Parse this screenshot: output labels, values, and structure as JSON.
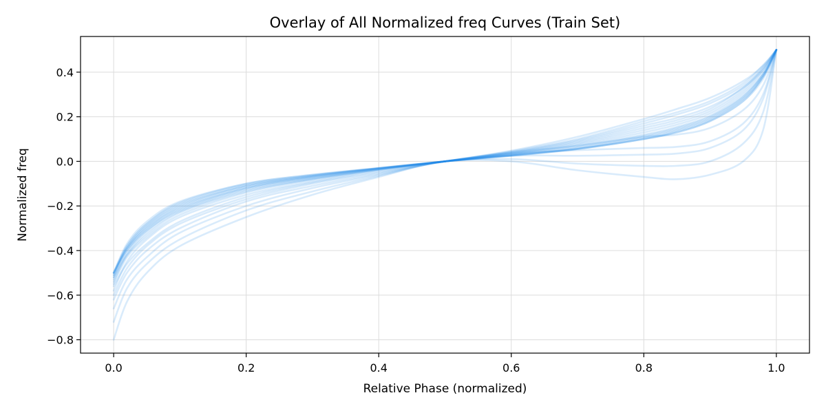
{
  "chart_data": {
    "type": "line",
    "title": "Overlay of All Normalized freq Curves (Train Set)",
    "xlabel": "Relative Phase (normalized)",
    "ylabel": "Normalized freq",
    "xlim": [
      -0.05,
      1.05
    ],
    "ylim": [
      -0.86,
      0.56
    ],
    "xticks": [
      0.0,
      0.2,
      0.4,
      0.6,
      0.8,
      1.0
    ],
    "xtick_labels": [
      "0.0",
      "0.2",
      "0.4",
      "0.6",
      "0.8",
      "1.0"
    ],
    "yticks": [
      -0.8,
      -0.6,
      -0.4,
      -0.2,
      0.0,
      0.2,
      0.4
    ],
    "ytick_labels": [
      "−0.8",
      "−0.6",
      "−0.4",
      "−0.2",
      "0.0",
      "0.2",
      "0.4"
    ],
    "grid": true,
    "line_color": "#1e88e5",
    "line_opacity": 0.17,
    "x": [
      0.0,
      0.02,
      0.05,
      0.1,
      0.2,
      0.3,
      0.4,
      0.5,
      0.6,
      0.7,
      0.8,
      0.85,
      0.9,
      0.95,
      0.98,
      1.0
    ],
    "series": [
      {
        "values": [
          -0.5,
          -0.37,
          -0.27,
          -0.18,
          -0.1,
          -0.06,
          -0.03,
          0.0,
          0.025,
          0.055,
          0.1,
          0.13,
          0.18,
          0.27,
          0.37,
          0.5
        ]
      },
      {
        "values": [
          -0.5,
          -0.38,
          -0.28,
          -0.185,
          -0.1,
          -0.06,
          -0.03,
          0.0,
          0.025,
          0.055,
          0.1,
          0.13,
          0.18,
          0.27,
          0.38,
          0.5
        ]
      },
      {
        "values": [
          -0.51,
          -0.38,
          -0.28,
          -0.19,
          -0.105,
          -0.063,
          -0.03,
          0.0,
          0.026,
          0.056,
          0.1,
          0.135,
          0.185,
          0.28,
          0.38,
          0.5
        ]
      },
      {
        "values": [
          -0.5,
          -0.39,
          -0.29,
          -0.195,
          -0.11,
          -0.065,
          -0.031,
          0.0,
          0.027,
          0.058,
          0.105,
          0.14,
          0.19,
          0.28,
          0.38,
          0.5
        ]
      },
      {
        "values": [
          -0.52,
          -0.39,
          -0.29,
          -0.2,
          -0.11,
          -0.066,
          -0.031,
          0.0,
          0.028,
          0.06,
          0.11,
          0.145,
          0.195,
          0.29,
          0.39,
          0.5
        ]
      },
      {
        "values": [
          -0.5,
          -0.39,
          -0.3,
          -0.205,
          -0.115,
          -0.068,
          -0.032,
          0.0,
          0.03,
          0.065,
          0.115,
          0.15,
          0.2,
          0.29,
          0.39,
          0.5
        ]
      },
      {
        "values": [
          -0.51,
          -0.4,
          -0.3,
          -0.21,
          -0.12,
          -0.07,
          -0.033,
          0.0,
          0.032,
          0.07,
          0.12,
          0.155,
          0.205,
          0.3,
          0.39,
          0.5
        ]
      },
      {
        "values": [
          -0.53,
          -0.41,
          -0.31,
          -0.215,
          -0.12,
          -0.072,
          -0.034,
          0.0,
          0.033,
          0.075,
          0.13,
          0.165,
          0.215,
          0.31,
          0.4,
          0.5
        ]
      },
      {
        "values": [
          -0.5,
          -0.4,
          -0.31,
          -0.22,
          -0.125,
          -0.075,
          -0.035,
          0.0,
          0.035,
          0.08,
          0.14,
          0.175,
          0.225,
          0.32,
          0.41,
          0.5
        ]
      },
      {
        "values": [
          -0.54,
          -0.42,
          -0.32,
          -0.225,
          -0.13,
          -0.078,
          -0.036,
          0.0,
          0.038,
          0.085,
          0.15,
          0.185,
          0.235,
          0.33,
          0.41,
          0.5
        ]
      },
      {
        "values": [
          -0.52,
          -0.42,
          -0.33,
          -0.23,
          -0.135,
          -0.08,
          -0.037,
          0.0,
          0.04,
          0.09,
          0.16,
          0.195,
          0.245,
          0.33,
          0.42,
          0.5
        ]
      },
      {
        "values": [
          -0.55,
          -0.43,
          -0.34,
          -0.24,
          -0.14,
          -0.083,
          -0.038,
          0.0,
          0.042,
          0.095,
          0.17,
          0.21,
          0.26,
          0.34,
          0.42,
          0.5
        ]
      },
      {
        "values": [
          -0.58,
          -0.45,
          -0.35,
          -0.25,
          -0.15,
          -0.09,
          -0.04,
          0.0,
          0.045,
          0.1,
          0.18,
          0.22,
          0.27,
          0.35,
          0.43,
          0.5
        ]
      },
      {
        "values": [
          -0.56,
          -0.46,
          -0.37,
          -0.27,
          -0.16,
          -0.095,
          -0.045,
          0.0,
          0.048,
          0.11,
          0.19,
          0.235,
          0.285,
          0.36,
          0.43,
          0.5
        ]
      },
      {
        "values": [
          -0.6,
          -0.48,
          -0.38,
          -0.28,
          -0.17,
          -0.1,
          -0.05,
          0.0,
          0.04,
          0.07,
          0.11,
          0.12,
          0.15,
          0.23,
          0.34,
          0.5
        ]
      },
      {
        "values": [
          -0.62,
          -0.5,
          -0.4,
          -0.3,
          -0.18,
          -0.11,
          -0.055,
          0.0,
          0.035,
          0.05,
          0.06,
          0.065,
          0.09,
          0.17,
          0.3,
          0.5
        ]
      },
      {
        "values": [
          -0.66,
          -0.53,
          -0.43,
          -0.32,
          -0.2,
          -0.12,
          -0.06,
          0.0,
          0.025,
          0.025,
          0.03,
          0.035,
          0.06,
          0.14,
          0.28,
          0.5
        ]
      },
      {
        "values": [
          -0.72,
          -0.57,
          -0.46,
          -0.35,
          -0.22,
          -0.135,
          -0.065,
          0.0,
          0.01,
          -0.01,
          -0.02,
          -0.02,
          0.0,
          0.08,
          0.22,
          0.5
        ]
      },
      {
        "values": [
          -0.8,
          -0.63,
          -0.5,
          -0.38,
          -0.25,
          -0.15,
          -0.07,
          0.0,
          0.0,
          -0.04,
          -0.07,
          -0.08,
          -0.06,
          0.0,
          0.14,
          0.5
        ]
      }
    ]
  }
}
